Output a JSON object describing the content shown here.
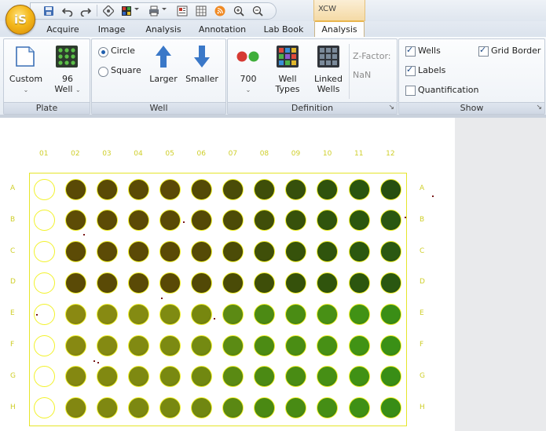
{
  "app": {
    "logo_text": "iS"
  },
  "context_tab_header": "XCW",
  "tabs": [
    {
      "label": "Acquire"
    },
    {
      "label": "Image"
    },
    {
      "label": "Analysis"
    },
    {
      "label": "Annotation"
    },
    {
      "label": "Lab Book"
    },
    {
      "label": "Analysis",
      "active": true
    }
  ],
  "quick_access": [
    {
      "icon": "save-icon"
    },
    {
      "icon": "undo-icon"
    },
    {
      "icon": "redo-icon"
    },
    {
      "icon": "settings-icon"
    },
    {
      "icon": "grid-color-icon"
    },
    {
      "icon": "print-icon"
    },
    {
      "icon": "report-icon"
    },
    {
      "icon": "table-icon"
    },
    {
      "icon": "rss-icon"
    },
    {
      "icon": "zoom-in-icon"
    },
    {
      "icon": "zoom-out-icon"
    }
  ],
  "ribbon": {
    "plate": {
      "caption": "Plate",
      "custom_label": "Custom",
      "well96_label_1": "96",
      "well96_label_2": "Well"
    },
    "well": {
      "caption": "Well",
      "circle_label": "Circle",
      "square_label": "Square",
      "shape_selected": "Circle",
      "larger_label": "Larger",
      "smaller_label": "Smaller"
    },
    "definition": {
      "caption": "Definition",
      "color_label": "700",
      "well_types_1": "Well",
      "well_types_2": "Types",
      "linked_wells_1": "Linked",
      "linked_wells_2": "Wells",
      "zfactor_label": "Z-Factor:",
      "zfactor_value": "NaN"
    },
    "show": {
      "caption": "Show",
      "wells_label": "Wells",
      "wells_checked": true,
      "grid_border_label": "Grid Border",
      "grid_border_checked": true,
      "labels_label": "Labels",
      "labels_checked": true,
      "quantification_label": "Quantification",
      "quantification_checked": false
    }
  },
  "plate": {
    "columns": [
      "01",
      "02",
      "03",
      "04",
      "05",
      "06",
      "07",
      "08",
      "09",
      "10",
      "11",
      "12"
    ],
    "rows": [
      "A",
      "B",
      "C",
      "D",
      "E",
      "F",
      "G",
      "H"
    ],
    "colors": {
      "label": "#d6d62a",
      "grid_border": "#e5e52a",
      "well_outline": "#f2f22a",
      "empty_well": "#ffffff"
    },
    "row_shades": [
      [
        "#ffffff",
        "#5a4a06",
        "#5a4a06",
        "#5b4b06",
        "#5b4a07",
        "#534a06",
        "#4a4c08",
        "#3e4e09",
        "#36500c",
        "#2f520d",
        "#2a550f",
        "#274f10"
      ],
      [
        "#ffffff",
        "#5d4c06",
        "#5c4b06",
        "#5b4a06",
        "#5a4a06",
        "#544906",
        "#4c4b07",
        "#404e09",
        "#37510b",
        "#30540d",
        "#2b560f",
        "#2a5711"
      ],
      [
        "#ffffff",
        "#5c4b06",
        "#5c4b06",
        "#5b4a06",
        "#5a4a06",
        "#554a06",
        "#4c4c07",
        "#3f4f09",
        "#36520b",
        "#30540d",
        "#2b570f",
        "#2a5811"
      ],
      [
        "#ffffff",
        "#5a4a06",
        "#5a4a06",
        "#5a4a06",
        "#594906",
        "#524906",
        "#4a4b07",
        "#3e4e09",
        "#35510b",
        "#30540d",
        "#2c560f",
        "#2a5711"
      ],
      [
        "#ffffff",
        "#8a8912",
        "#878a12",
        "#848b12",
        "#7f8b12",
        "#77870f",
        "#5c8a14",
        "#4c8a14",
        "#4a8c14",
        "#489015",
        "#419215",
        "#3a8e16"
      ],
      [
        "#ffffff",
        "#878912",
        "#848a12",
        "#818a12",
        "#7c8a12",
        "#748a12",
        "#5b8b14",
        "#4c8b14",
        "#4a8d14",
        "#479015",
        "#419315",
        "#3a9016"
      ],
      [
        "#ffffff",
        "#848811",
        "#818911",
        "#7e8911",
        "#798911",
        "#718811",
        "#5a8a13",
        "#4b8a14",
        "#498c14",
        "#468f15",
        "#409115",
        "#398e16"
      ],
      [
        "#ffffff",
        "#828711",
        "#7f8811",
        "#7c8811",
        "#788811",
        "#708711",
        "#5a8813",
        "#4a8913",
        "#488b14",
        "#458e15",
        "#3f9015",
        "#388d16"
      ]
    ]
  }
}
